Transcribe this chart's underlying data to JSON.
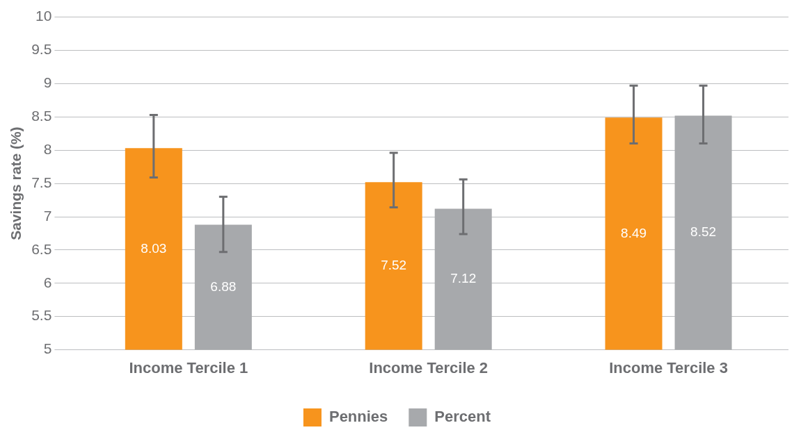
{
  "chart_data": {
    "type": "bar",
    "ylabel": "Savings rate (%)",
    "categories": [
      "Income Tercile 1",
      "Income Tercile 2",
      "Income Tercile 3"
    ],
    "series": [
      {
        "name": "Pennies",
        "color": "#f7941d",
        "values": [
          8.03,
          7.52,
          8.49
        ],
        "errors": [
          [
            7.59,
            8.53
          ],
          [
            7.14,
            7.96
          ],
          [
            8.1,
            8.97
          ]
        ]
      },
      {
        "name": "Percent",
        "color": "#a7a9ac",
        "values": [
          6.88,
          7.12,
          8.52
        ],
        "errors": [
          [
            6.47,
            7.3
          ],
          [
            6.74,
            7.56
          ],
          [
            8.1,
            8.97
          ]
        ]
      }
    ],
    "ylim": [
      5,
      10
    ],
    "yticks": [
      5,
      5.5,
      6,
      6.5,
      7,
      7.5,
      8,
      8.5,
      9,
      9.5,
      10
    ],
    "grid": "y",
    "legend": "bottom",
    "data_labels": true
  }
}
